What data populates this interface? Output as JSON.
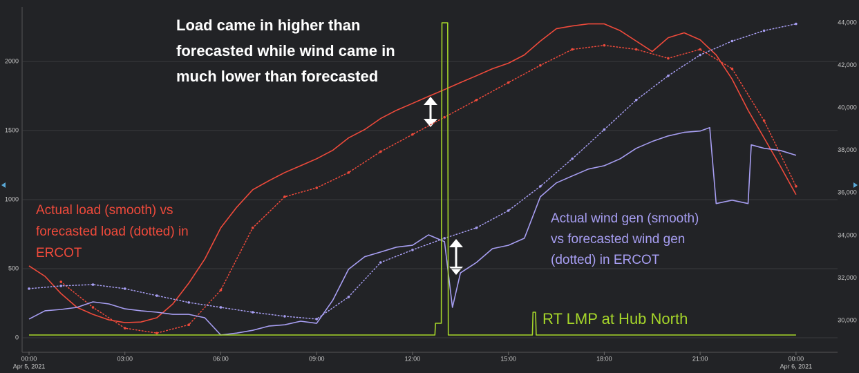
{
  "chart_data": {
    "type": "line",
    "background": "#222326",
    "xlim": [
      -0.2,
      25.3
    ],
    "xticks": [
      {
        "value": 0,
        "label": "00:00"
      },
      {
        "value": 3,
        "label": "03:00"
      },
      {
        "value": 6,
        "label": "06:00"
      },
      {
        "value": 9,
        "label": "09:00"
      },
      {
        "value": 12,
        "label": "12:00"
      },
      {
        "value": 15,
        "label": "15:00"
      },
      {
        "value": 18,
        "label": "18:00"
      },
      {
        "value": 21,
        "label": "21:00"
      },
      {
        "value": 24,
        "label": "00:00"
      }
    ],
    "x_dates": [
      {
        "value": 0,
        "label": "Apr 5, 2021"
      },
      {
        "value": 24,
        "label": "Apr 6, 2021"
      }
    ],
    "ylim": [
      -100,
      2400
    ],
    "yticks": [
      0,
      500,
      1000,
      1500,
      2000
    ],
    "y2lim": [
      28540,
      44780
    ],
    "y2ticks": [
      {
        "value": 30000,
        "label": "30,000"
      },
      {
        "value": 32000,
        "label": "32,000"
      },
      {
        "value": 34000,
        "label": "34,000"
      },
      {
        "value": 36000,
        "label": "36,000"
      },
      {
        "value": 38000,
        "label": "38,000"
      },
      {
        "value": 40000,
        "label": "40,000"
      },
      {
        "value": 42000,
        "label": "42,000"
      },
      {
        "value": 44000,
        "label": "44,000"
      }
    ],
    "grid": true,
    "series": [
      {
        "color": "#ef4a3b",
        "style": "solid",
        "axis": "y2",
        "x": [
          0,
          0.5,
          1,
          1.5,
          2,
          2.5,
          3,
          3.5,
          4,
          4.5,
          5,
          5.5,
          6,
          6.5,
          7,
          7.5,
          8,
          8.5,
          9,
          9.5,
          10,
          10.5,
          11,
          11.5,
          12,
          12.5,
          13,
          13.5,
          14,
          14.5,
          15,
          15.5,
          16,
          16.5,
          17,
          17.5,
          18,
          18.5,
          19,
          19.5,
          20,
          20.5,
          21,
          21.5,
          22,
          22.5,
          23,
          23.5,
          24
        ],
        "values": [
          32570,
          32080,
          31270,
          30620,
          30290,
          30030,
          29900,
          29930,
          30130,
          30780,
          31760,
          32890,
          34360,
          35330,
          36150,
          36570,
          36960,
          37280,
          37610,
          38000,
          38590,
          38980,
          39500,
          39890,
          40210,
          40540,
          40860,
          41190,
          41510,
          41840,
          42100,
          42490,
          43140,
          43720,
          43850,
          43950,
          43950,
          43630,
          43140,
          42650,
          43300,
          43530,
          43200,
          42490,
          41350,
          39890,
          38590,
          37280,
          35920
        ]
      },
      {
        "color": "#ef4a3b",
        "style": "dotted",
        "axis": "y2",
        "x": [
          1,
          2,
          3,
          4,
          5,
          6,
          7,
          8,
          9,
          10,
          11,
          12,
          13,
          14,
          15,
          16,
          17,
          18,
          19,
          20,
          21,
          22,
          23,
          24
        ],
        "values": [
          31820,
          30620,
          29640,
          29410,
          29800,
          31430,
          34360,
          35820,
          36240,
          36960,
          37940,
          38750,
          39560,
          40370,
          41190,
          42000,
          42750,
          42940,
          42750,
          42330,
          42750,
          41840,
          39400,
          36310
        ]
      },
      {
        "color": "#a79ef2",
        "style": "solid",
        "axis": "y2",
        "x": [
          0,
          0.5,
          1,
          1.5,
          2,
          2.5,
          3,
          3.5,
          4,
          4.5,
          5,
          5.5,
          6,
          6.5,
          7,
          7.5,
          8,
          8.5,
          9,
          9.5,
          10,
          10.5,
          11,
          11.5,
          12,
          12.5,
          13,
          13.25,
          13.5,
          14,
          14.5,
          15,
          15.5,
          16,
          16.5,
          17,
          17.5,
          18,
          18.5,
          19,
          19.5,
          20,
          20.5,
          21,
          21.3,
          21.5,
          22,
          22.5,
          22.6,
          23,
          23.5,
          24
        ],
        "values": [
          30070,
          30460,
          30520,
          30620,
          30880,
          30780,
          30550,
          30460,
          30390,
          30290,
          30290,
          30130,
          29320,
          29410,
          29540,
          29740,
          29800,
          29970,
          29870,
          30940,
          32410,
          33000,
          33220,
          33450,
          33540,
          34030,
          33710,
          30620,
          32240,
          32730,
          33380,
          33540,
          33870,
          35820,
          36470,
          36800,
          37120,
          37280,
          37610,
          38100,
          38420,
          38680,
          38850,
          38910,
          39070,
          35500,
          35660,
          35500,
          38260,
          38100,
          38000,
          37770
        ]
      },
      {
        "color": "#a79ef2",
        "style": "dotted",
        "axis": "y2",
        "x": [
          0,
          1,
          2,
          3,
          4,
          5,
          6,
          7,
          8,
          9,
          10,
          11,
          12,
          13,
          14,
          15,
          16,
          17,
          18,
          19,
          20,
          21,
          22,
          23,
          24
        ],
        "values": [
          31500,
          31630,
          31690,
          31500,
          31170,
          30850,
          30620,
          30390,
          30200,
          30070,
          31110,
          32730,
          33320,
          33870,
          34360,
          35170,
          36310,
          37610,
          38980,
          40370,
          41510,
          42490,
          43140,
          43630,
          43950
        ]
      },
      {
        "color": "#a6d62a",
        "style": "solid",
        "axis": "y",
        "x": [
          0,
          12.7,
          12.72,
          12.9,
          12.92,
          13.1,
          13.12,
          15.75,
          15.77,
          15.85,
          15.87,
          24
        ],
        "values": [
          20,
          20,
          105,
          105,
          2280,
          2280,
          20,
          20,
          185,
          185,
          20,
          20
        ]
      }
    ],
    "annotations": [
      {
        "lines": [
          "Load came in higher than",
          "forecasted while wind came in",
          "much lower than forecasted"
        ],
        "color": "#ffffff"
      },
      {
        "lines": [
          "Actual load (smooth) vs",
          "forecasted load (dotted) in",
          "ERCOT"
        ],
        "color": "#ef4a3b"
      },
      {
        "lines": [
          "Actual wind gen (smooth)",
          "vs forecasted wind gen",
          "(dotted) in ERCOT"
        ],
        "color": "#a79ef2"
      },
      {
        "lines": [
          "RT LMP at Hub North"
        ],
        "color": "#a6d62a"
      }
    ]
  }
}
